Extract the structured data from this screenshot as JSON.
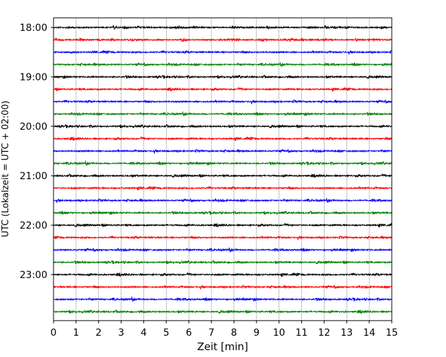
{
  "chart_data": {
    "type": "line",
    "title": "",
    "xlabel": "Zeit  [min]",
    "ylabel": "UTC (Lokalzeit = UTC + 02:00)",
    "xlim": [
      0,
      15
    ],
    "x_ticks": [
      0,
      1,
      2,
      3,
      4,
      5,
      6,
      7,
      8,
      9,
      10,
      11,
      12,
      13,
      14,
      15
    ],
    "y_tick_labels": [
      "18:00",
      "19:00",
      "20:00",
      "21:00",
      "22:00",
      "23:00"
    ],
    "grid": "vertical dotted",
    "trace_colors": [
      "#000000",
      "#ff0000",
      "#0000ff",
      "#008000"
    ],
    "traces": [
      {
        "start": "18:00",
        "color": "#000000"
      },
      {
        "start": "18:15",
        "color": "#ff0000"
      },
      {
        "start": "18:30",
        "color": "#0000ff"
      },
      {
        "start": "18:45",
        "color": "#008000"
      },
      {
        "start": "19:00",
        "color": "#000000"
      },
      {
        "start": "19:15",
        "color": "#ff0000"
      },
      {
        "start": "19:30",
        "color": "#0000ff"
      },
      {
        "start": "19:45",
        "color": "#008000"
      },
      {
        "start": "20:00",
        "color": "#000000"
      },
      {
        "start": "20:15",
        "color": "#ff0000"
      },
      {
        "start": "20:30",
        "color": "#0000ff"
      },
      {
        "start": "20:45",
        "color": "#008000"
      },
      {
        "start": "21:00",
        "color": "#000000"
      },
      {
        "start": "21:15",
        "color": "#ff0000"
      },
      {
        "start": "21:30",
        "color": "#0000ff"
      },
      {
        "start": "21:45",
        "color": "#008000"
      },
      {
        "start": "22:00",
        "color": "#000000"
      },
      {
        "start": "22:15",
        "color": "#ff0000"
      },
      {
        "start": "22:30",
        "color": "#0000ff"
      },
      {
        "start": "22:45",
        "color": "#008000"
      },
      {
        "start": "23:00",
        "color": "#000000"
      },
      {
        "start": "23:15",
        "color": "#ff0000"
      },
      {
        "start": "23:30",
        "color": "#0000ff"
      },
      {
        "start": "23:45",
        "color": "#008000"
      }
    ]
  }
}
